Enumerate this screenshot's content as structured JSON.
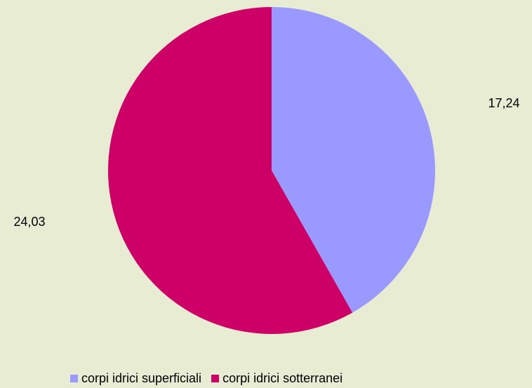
{
  "chart_data": {
    "type": "pie",
    "categories": [
      "corpi idrici superficiali",
      "corpi idrici sotterranei"
    ],
    "values": [
      17.24,
      24.03
    ],
    "value_labels": [
      "17,24",
      "24,03"
    ],
    "colors": [
      "#9999ff",
      "#cc0066"
    ]
  }
}
